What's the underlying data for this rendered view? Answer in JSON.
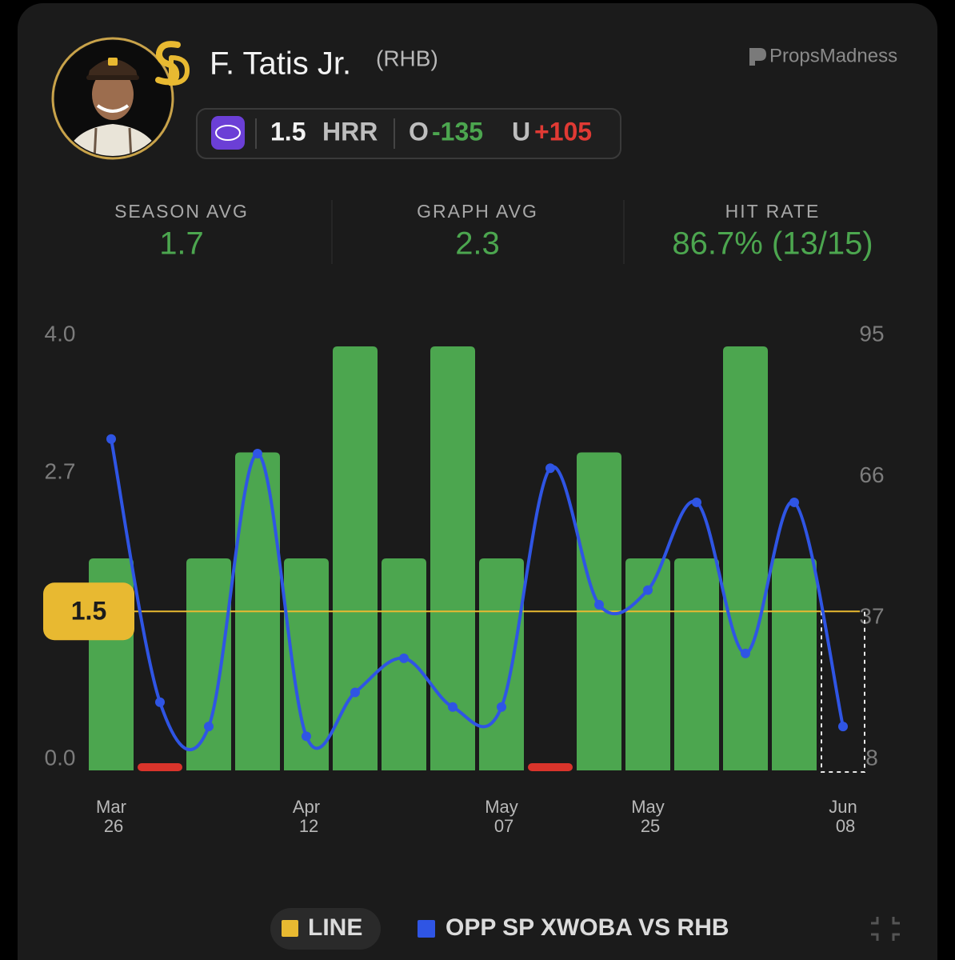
{
  "header": {
    "player": "F. Tatis Jr.",
    "hand": "(RHB)",
    "brand": "PropsMadness",
    "prop": {
      "line": "1.5",
      "stat": "HRR",
      "over_label": "O",
      "over_odds": "-135",
      "under_label": "U",
      "under_odds": "+105"
    }
  },
  "stats": [
    {
      "label": "SEASON AVG",
      "value": "1.7"
    },
    {
      "label": "GRAPH AVG",
      "value": "2.3"
    },
    {
      "label": "HIT RATE",
      "value": "86.7% (13/15)"
    }
  ],
  "chart_data": {
    "type": "bar",
    "categories": [
      "Mar 26",
      null,
      null,
      null,
      "Apr 12",
      null,
      null,
      null,
      "May 07",
      null,
      null,
      "May 25",
      null,
      null,
      null,
      "Jun 08"
    ],
    "values": [
      2,
      0,
      2,
      3,
      2,
      4,
      2,
      4,
      2,
      0,
      3,
      2,
      2,
      4,
      2,
      null
    ],
    "colors": {
      "over": "#4ca64f",
      "under": "#d9342b"
    },
    "ylim": [
      0,
      4
    ],
    "yticks": [
      {
        "value": 0,
        "label": "0.0"
      },
      2.7,
      {
        "value": 4,
        "label": "4.0"
      }
    ],
    "threshold": {
      "name": "LINE",
      "value": 1.5,
      "color": "#e8b931"
    },
    "y2lim": [
      8,
      95
    ],
    "y2ticks": [
      8,
      37,
      66,
      95
    ],
    "series": [
      {
        "name": "OPP SP XWOBA VS RHB",
        "color": "#2f55e4",
        "axis": "y2",
        "values": [
          76,
          22,
          17,
          73,
          15,
          24,
          31,
          21,
          21,
          70,
          42,
          45,
          63,
          32,
          63,
          17
        ]
      }
    ]
  }
}
